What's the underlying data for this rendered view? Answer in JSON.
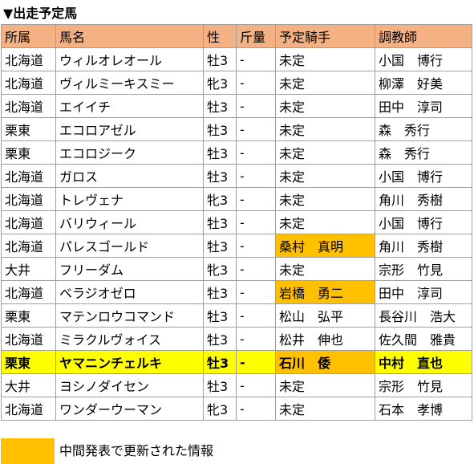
{
  "title": "▼出走予定馬",
  "headers": [
    "所属",
    "馬名",
    "性",
    "斤量",
    "予定騎手",
    "調教師"
  ],
  "rows": [
    {
      "cells": [
        "北海道",
        "ウィルオレオール",
        "牡3",
        "-",
        "未定",
        "小国　博行"
      ],
      "updated_jockey": false,
      "highlight": false
    },
    {
      "cells": [
        "北海道",
        "ヴィルミーキスミー",
        "牝3",
        "-",
        "未定",
        "柳澤　好美"
      ],
      "updated_jockey": false,
      "highlight": false
    },
    {
      "cells": [
        "北海道",
        "エイイチ",
        "牡3",
        "-",
        "未定",
        "田中　淳司"
      ],
      "updated_jockey": false,
      "highlight": false
    },
    {
      "cells": [
        "栗東",
        "エコロアゼル",
        "牡3",
        "-",
        "未定",
        "森　秀行"
      ],
      "updated_jockey": false,
      "highlight": false
    },
    {
      "cells": [
        "栗東",
        "エコロジーク",
        "牡3",
        "-",
        "未定",
        "森　秀行"
      ],
      "updated_jockey": false,
      "highlight": false
    },
    {
      "cells": [
        "北海道",
        "ガロス",
        "牡3",
        "-",
        "未定",
        "小国　博行"
      ],
      "updated_jockey": false,
      "highlight": false
    },
    {
      "cells": [
        "北海道",
        "トレヴェナ",
        "牝3",
        "-",
        "未定",
        "角川　秀樹"
      ],
      "updated_jockey": false,
      "highlight": false
    },
    {
      "cells": [
        "北海道",
        "バリウィール",
        "牡3",
        "-",
        "未定",
        "小国　博行"
      ],
      "updated_jockey": false,
      "highlight": false
    },
    {
      "cells": [
        "北海道",
        "パレスゴールド",
        "牡3",
        "-",
        "桑村　真明",
        "角川　秀樹"
      ],
      "updated_jockey": true,
      "highlight": false
    },
    {
      "cells": [
        "大井",
        "フリーダム",
        "牝3",
        "-",
        "未定",
        "宗形　竹見"
      ],
      "updated_jockey": false,
      "highlight": false
    },
    {
      "cells": [
        "北海道",
        "ベラジオゼロ",
        "牡3",
        "-",
        "岩橋　勇二",
        "田中　淳司"
      ],
      "updated_jockey": true,
      "highlight": false
    },
    {
      "cells": [
        "栗東",
        "マテンロウコマンド",
        "牡3",
        "-",
        "松山　弘平",
        "長谷川　浩大"
      ],
      "updated_jockey": false,
      "highlight": false
    },
    {
      "cells": [
        "北海道",
        "ミラクルヴォイス",
        "牡3",
        "-",
        "松井　伸也",
        "佐久間　雅貴"
      ],
      "updated_jockey": false,
      "highlight": false
    },
    {
      "cells": [
        "栗東",
        "ヤマニンチェルキ",
        "牡3",
        "-",
        "石川　倭",
        "中村　直也"
      ],
      "updated_jockey": true,
      "highlight": true
    },
    {
      "cells": [
        "大井",
        "ヨシノダイセン",
        "牡3",
        "-",
        "未定",
        "宗形　竹見"
      ],
      "updated_jockey": false,
      "highlight": false
    },
    {
      "cells": [
        "北海道",
        "ワンダーウーマン",
        "牝3",
        "-",
        "未定",
        "石本　孝博"
      ],
      "updated_jockey": false,
      "highlight": false
    }
  ],
  "legend": {
    "text": "中間発表で更新された情報",
    "swatch_color": "#ffc000"
  },
  "colors": {
    "header_bg": "#f4b183",
    "highlight_row_bg": "#ffff00",
    "updated_cell_bg": "#ffc000"
  }
}
